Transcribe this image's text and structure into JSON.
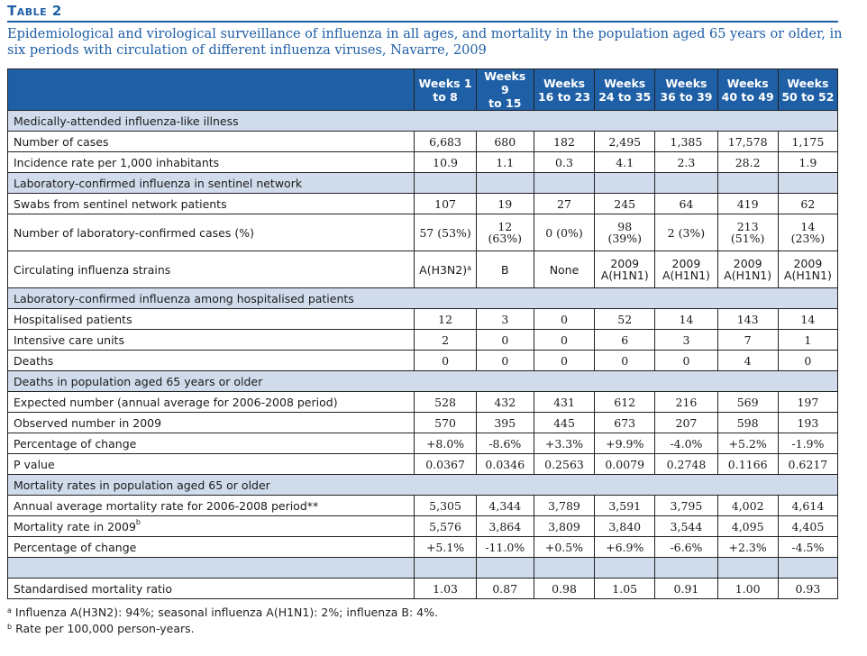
{
  "table_label": "Table 2",
  "caption": "Epidemiological and virological surveillance of influenza in all ages, and mortality in the population aged 65 years or older, in six periods with circulation of different influenza viruses, Navarre, 2009",
  "columns": [
    "Weeks 1 to 8",
    "Weeks 9 to 15",
    "Weeks 16 to 23",
    "Weeks 24 to 35",
    "Weeks 36 to 39",
    "Weeks 40 to 49",
    "Weeks 50 to 52"
  ],
  "column_lines": [
    [
      "Weeks 1",
      "to 8"
    ],
    [
      "Weeks 9",
      "to 15"
    ],
    [
      "Weeks",
      "16 to 23"
    ],
    [
      "Weeks",
      "24 to 35"
    ],
    [
      "Weeks",
      "36 to 39"
    ],
    [
      "Weeks",
      "40 to 49"
    ],
    [
      "Weeks",
      "50 to 52"
    ]
  ],
  "rows": [
    {
      "type": "section",
      "label": "Medically-attended influenza-like illness"
    },
    {
      "type": "data",
      "label": "Number of cases",
      "values": [
        "6,683",
        "680",
        "182",
        "2,495",
        "1,385",
        "17,578",
        "1,175"
      ]
    },
    {
      "type": "data",
      "label": "Incidence rate per 1,000 inhabitants",
      "values": [
        "10.9",
        "1.1",
        "0.3",
        "4.1",
        "2.3",
        "28.2",
        "1.9"
      ]
    },
    {
      "type": "section-cells",
      "label": "Laboratory-confirmed influenza in sentinel network"
    },
    {
      "type": "data",
      "label": "Swabs from sentinel network patients",
      "values": [
        "107",
        "19",
        "27",
        "245",
        "64",
        "419",
        "62"
      ]
    },
    {
      "type": "data2",
      "label": "Number of laboratory-confirmed cases (%)",
      "values": [
        [
          "57 (53%)"
        ],
        [
          "12",
          "(63%)"
        ],
        [
          "0 (0%)"
        ],
        [
          "98",
          "(39%)"
        ],
        [
          "2 (3%)"
        ],
        [
          "213",
          "(51%)"
        ],
        [
          "14",
          "(23%)"
        ]
      ]
    },
    {
      "type": "data2",
      "label": "Circulating influenza strains",
      "values": [
        [
          "A(H3N2)"
        ],
        [
          "B"
        ],
        [
          "None"
        ],
        [
          "2009",
          "A(H1N1)"
        ],
        [
          "2009",
          "A(H1N1)"
        ],
        [
          "2009",
          "A(H1N1)"
        ],
        [
          "2009",
          "A(H1N1)"
        ]
      ],
      "first_sup": "a"
    },
    {
      "type": "section",
      "label": "Laboratory-confirmed influenza among hospitalised patients"
    },
    {
      "type": "data",
      "label": "Hospitalised patients",
      "values": [
        "12",
        "3",
        "0",
        "52",
        "14",
        "143",
        "14"
      ]
    },
    {
      "type": "data",
      "label": "Intensive care units",
      "values": [
        "2",
        "0",
        "0",
        "6",
        "3",
        "7",
        "1"
      ]
    },
    {
      "type": "data",
      "label": "Deaths",
      "values": [
        "0",
        "0",
        "0",
        "0",
        "0",
        "4",
        "0"
      ]
    },
    {
      "type": "section",
      "label": "Deaths in population aged 65 years or older"
    },
    {
      "type": "data",
      "label": "Expected number (annual average for 2006-2008 period)",
      "values": [
        "528",
        "432",
        "431",
        "612",
        "216",
        "569",
        "197"
      ]
    },
    {
      "type": "data",
      "label": "Observed number in 2009",
      "values": [
        "570",
        "395",
        "445",
        "673",
        "207",
        "598",
        "193"
      ]
    },
    {
      "type": "data",
      "label": "Percentage of change",
      "values": [
        "+8.0%",
        "-8.6%",
        "+3.3%",
        "+9.9%",
        "-4.0%",
        "+5.2%",
        "-1.9%"
      ]
    },
    {
      "type": "data",
      "label": "P value",
      "values": [
        "0.0367",
        "0.0346",
        "0.2563",
        "0.0079",
        "0.2748",
        "0.1166",
        "0.6217"
      ]
    },
    {
      "type": "section",
      "label": "Mortality rates in population aged 65 or older"
    },
    {
      "type": "data",
      "label": "Annual average mortality rate for 2006-2008 period**",
      "values": [
        "5,305",
        "4,344",
        "3,789",
        "3,591",
        "3,795",
        "4,002",
        "4,614"
      ]
    },
    {
      "type": "data",
      "label": "Mortality rate in 2009",
      "label_sup": "b",
      "values": [
        "5,576",
        "3,864",
        "3,809",
        "3,840",
        "3,544",
        "4,095",
        "4,405"
      ]
    },
    {
      "type": "data",
      "label": "Percentage of change",
      "values": [
        "+5.1%",
        "-11.0%",
        "+0.5%",
        "+6.9%",
        "-6.6%",
        "+2.3%",
        "-4.5%"
      ]
    },
    {
      "type": "empty"
    },
    {
      "type": "data",
      "label": "Standardised mortality ratio",
      "values": [
        "1.03",
        "0.87",
        "0.98",
        "1.05",
        "0.91",
        "1.00",
        "0.93"
      ]
    }
  ],
  "footnotes": [
    {
      "mark": "a",
      "text": "Influenza A(H3N2): 94%; seasonal influenza A(H1N1): 2%; influenza B: 4%."
    },
    {
      "mark": "b",
      "text": "Rate per 100,000 person-years."
    }
  ],
  "colors": {
    "accent": "#1f5fa6",
    "section_fill": "#d0dcec"
  }
}
